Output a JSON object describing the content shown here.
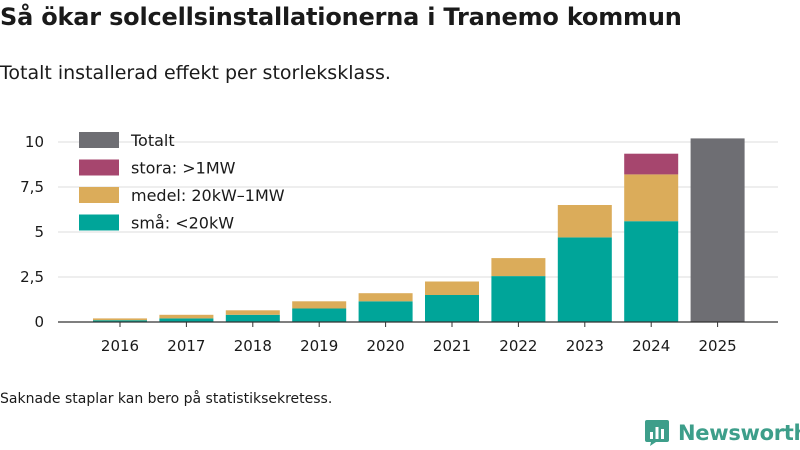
{
  "title": "Så ökar solcellsinstallationerna i Tranemo kommun",
  "subtitle": "Totalt installerad effekt per storleksklass.",
  "footnote": "Saknade staplar kan bero på statistiksekretess.",
  "brand": {
    "name": "Newsworthy",
    "logo_icon": "bar-chart-icon"
  },
  "colors": {
    "small": "#00a599",
    "medium": "#dbac5a",
    "large": "#a6466e",
    "total": "#6e6e73",
    "grid": "#dddddd",
    "brand": "#3d9e8a"
  },
  "chart_data": {
    "type": "bar",
    "stacked": true,
    "title": "Så ökar solcellsinstallationerna i Tranemo kommun",
    "subtitle": "Totalt installerad effekt per storleksklass.",
    "xlabel": "",
    "ylabel": "",
    "ylim": [
      0,
      10
    ],
    "yticks": [
      0,
      2.5,
      5,
      7.5,
      10
    ],
    "ytick_labels": [
      "0",
      "2,5",
      "5",
      "7,5",
      "10"
    ],
    "grid": true,
    "legend_position": "top-left",
    "categories": [
      "2016",
      "2017",
      "2018",
      "2019",
      "2020",
      "2021",
      "2022",
      "2023",
      "2024",
      "2025"
    ],
    "series": [
      {
        "name": "små: <20kW",
        "key": "small",
        "values": [
          0.1,
          0.2,
          0.4,
          0.75,
          1.15,
          1.5,
          2.55,
          4.7,
          5.6,
          null
        ]
      },
      {
        "name": "medel: 20kW–1MW",
        "key": "medium",
        "values": [
          0.1,
          0.2,
          0.25,
          0.4,
          0.45,
          0.75,
          1.0,
          1.8,
          2.6,
          null
        ]
      },
      {
        "name": "stora: >1MW",
        "key": "large",
        "values": [
          null,
          null,
          null,
          null,
          null,
          null,
          null,
          null,
          1.15,
          null
        ]
      },
      {
        "name": "Totalt",
        "key": "total",
        "values": [
          null,
          null,
          null,
          null,
          null,
          null,
          null,
          null,
          null,
          10.2
        ]
      }
    ],
    "legend_order": [
      "total",
      "large",
      "medium",
      "small"
    ]
  }
}
